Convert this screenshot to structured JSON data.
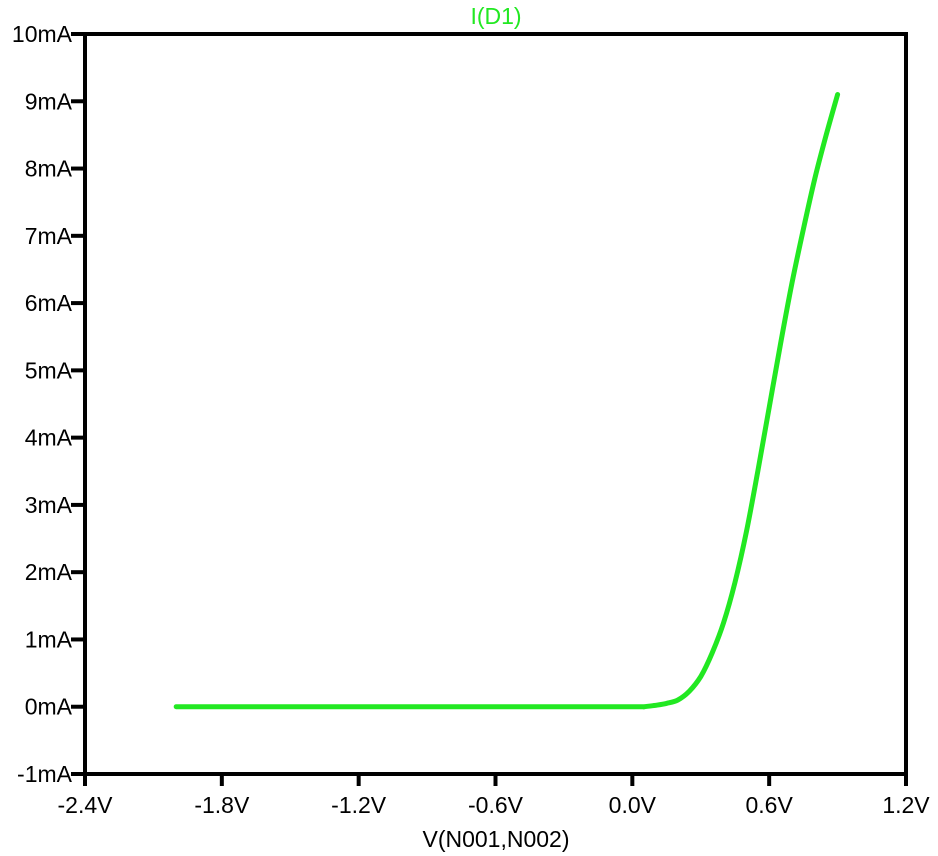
{
  "chart_data": {
    "type": "line",
    "title": "I(D1)",
    "xlabel": "V(N001,N002)",
    "ylabel": "",
    "xlim": [
      -2.4,
      1.2
    ],
    "ylim": [
      -1,
      10
    ],
    "x_ticks": [
      -2.4,
      -1.8,
      -1.2,
      -0.6,
      0.0,
      0.6,
      1.2
    ],
    "x_tick_labels": [
      "-2.4V",
      "-1.8V",
      "-1.2V",
      "-0.6V",
      "0.0V",
      "0.6V",
      "1.2V"
    ],
    "y_ticks": [
      -1,
      0,
      1,
      2,
      3,
      4,
      5,
      6,
      7,
      8,
      9,
      10
    ],
    "y_tick_labels": [
      "-1mA",
      "0mA",
      "1mA",
      "2mA",
      "3mA",
      "4mA",
      "5mA",
      "6mA",
      "7mA",
      "8mA",
      "9mA",
      "10mA"
    ],
    "grid": false,
    "series": [
      {
        "name": "I(D1)",
        "color": "#22e822",
        "x": [
          -2.0,
          -1.5,
          -1.0,
          -0.5,
          0.0,
          0.05,
          0.1,
          0.15,
          0.2,
          0.25,
          0.3,
          0.35,
          0.4,
          0.45,
          0.5,
          0.55,
          0.6,
          0.65,
          0.7,
          0.75,
          0.8,
          0.85,
          0.9
        ],
        "y": [
          0,
          0,
          0,
          0,
          0,
          0,
          0.02,
          0.05,
          0.1,
          0.23,
          0.45,
          0.8,
          1.25,
          1.85,
          2.6,
          3.5,
          4.45,
          5.4,
          6.3,
          7.1,
          7.85,
          8.5,
          9.1
        ]
      }
    ]
  }
}
